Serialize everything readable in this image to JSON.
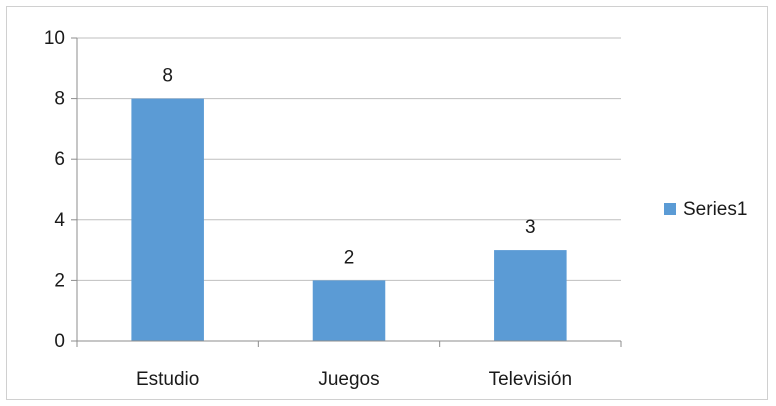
{
  "chart_data": {
    "type": "bar",
    "categories": [
      "Estudio",
      "Juegos",
      "Televisión"
    ],
    "series": [
      {
        "name": "Series1",
        "values": [
          8,
          2,
          3
        ],
        "color": "#5b9bd5"
      }
    ],
    "data_labels": [
      "8",
      "2",
      "3"
    ],
    "y_ticks": [
      "0",
      "2",
      "4",
      "6",
      "8",
      "10"
    ],
    "ylim": [
      0,
      10
    ],
    "grid": true,
    "legend": {
      "position": "right",
      "label": "Series1"
    },
    "colors": {
      "bar": "#5b9bd5",
      "grid": "#bfbfbf",
      "axis": "#8c8c8c",
      "text": "#1a1a1a"
    }
  }
}
